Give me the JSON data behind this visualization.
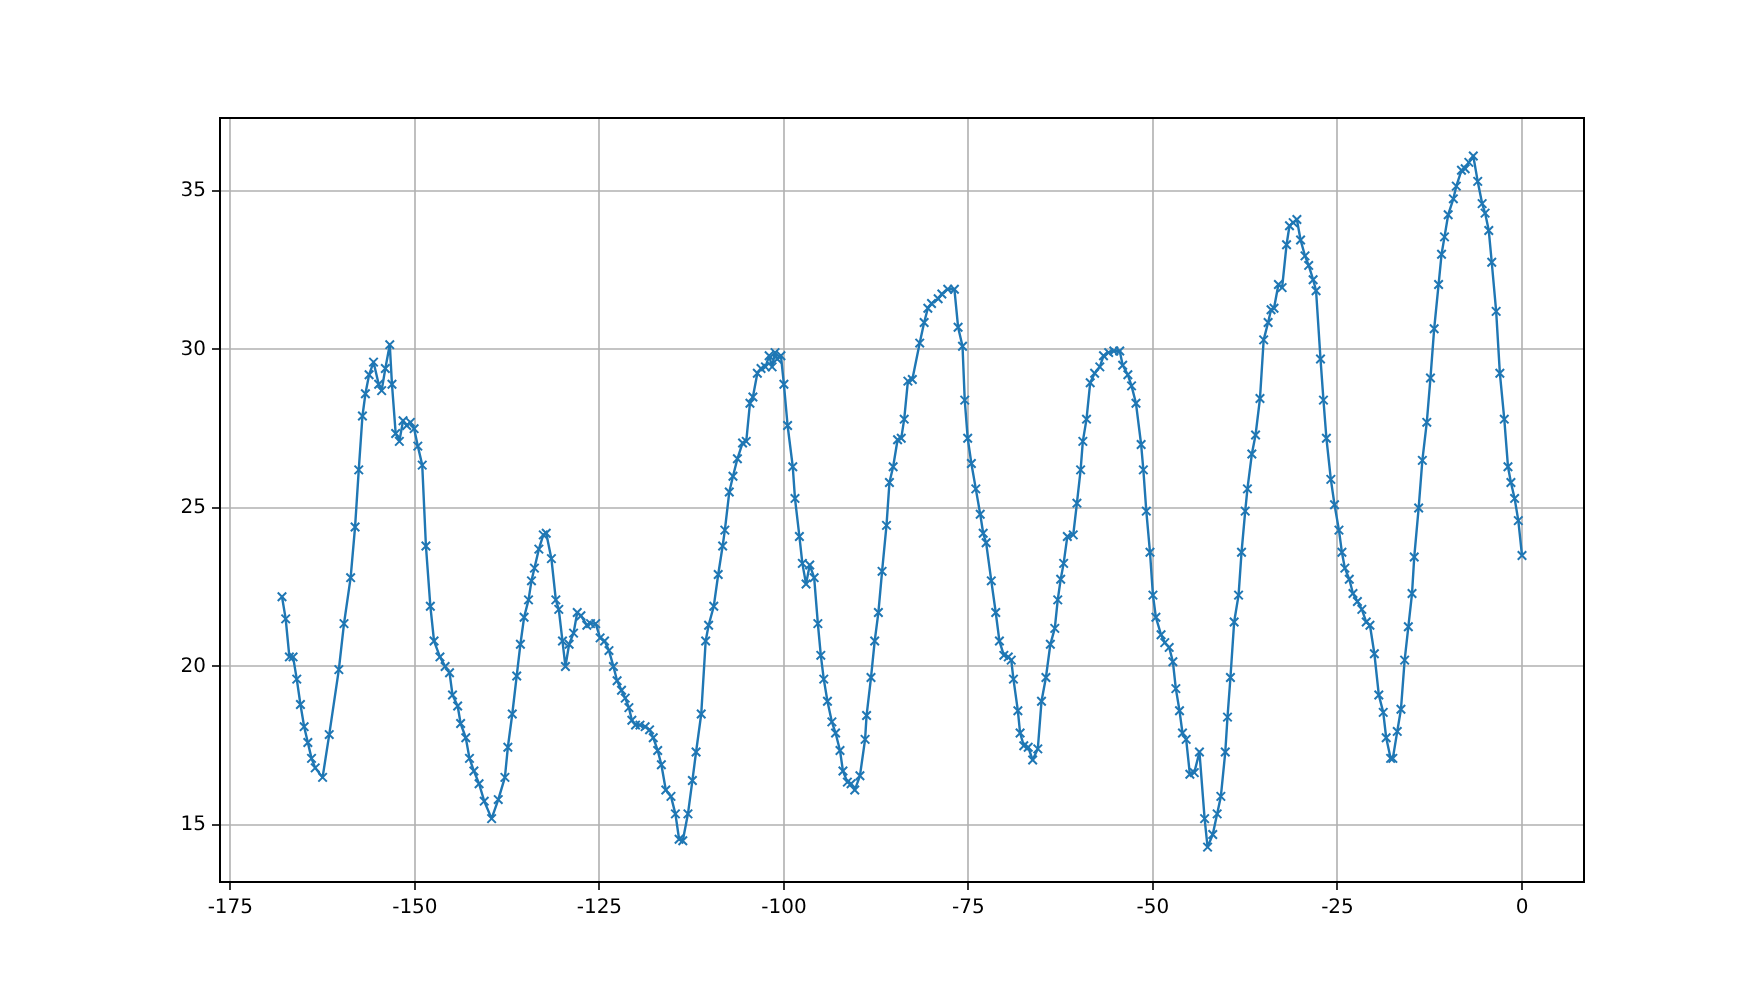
{
  "chart_data": {
    "type": "line",
    "marker": "cross",
    "line_style": "solid",
    "grid": true,
    "legend": false,
    "xlim": [
      -176.4,
      8.4
    ],
    "ylim": [
      13.2,
      37.3
    ],
    "xticks": [
      -175,
      -150,
      -125,
      -100,
      -75,
      -50,
      -25,
      0
    ],
    "yticks": [
      15,
      20,
      25,
      30,
      35
    ],
    "x": [
      -168,
      -167.5,
      -167,
      -166.5,
      -166,
      -165.5,
      -165,
      -164.5,
      -164,
      -163.5,
      -162.5,
      -161.6,
      -160.3,
      -159.6,
      -158.7,
      -158.1,
      -157.6,
      -157.1,
      -156.7,
      -156.2,
      -155.6,
      -154.9,
      -154.5,
      -154.0,
      -153.4,
      -153.1,
      -152.6,
      -152.1,
      -151.6,
      -151.1,
      -150.6,
      -150.1,
      -149.6,
      -149.0,
      -148.5,
      -147.9,
      -147.4,
      -146.6,
      -145.9,
      -145.3,
      -144.9,
      -144.2,
      -143.8,
      -143.1,
      -142.6,
      -142.0,
      -141.3,
      -140.6,
      -139.6,
      -138.7,
      -137.8,
      -137.4,
      -136.8,
      -136.2,
      -135.7,
      -135.2,
      -134.6,
      -134.2,
      -133.8,
      -133.2,
      -132.6,
      -132.2,
      -131.5,
      -130.9,
      -130.5,
      -130.0,
      -129.6,
      -129.1,
      -128.5,
      -128.0,
      -127.5,
      -126.7,
      -126.2,
      -125.5,
      -124.9,
      -124.3,
      -123.7,
      -123.1,
      -122.6,
      -122.0,
      -121.5,
      -121.0,
      -120.6,
      -120.1,
      -119.5,
      -118.8,
      -118.2,
      -117.7,
      -117.1,
      -116.6,
      -116.0,
      -115.3,
      -114.7,
      -114.2,
      -113.7,
      -113.0,
      -112.4,
      -111.9,
      -111.2,
      -110.6,
      -110.2,
      -109.5,
      -108.9,
      -108.3,
      -108.0,
      -107.4,
      -106.9,
      -106.3,
      -105.6,
      -105.1,
      -104.6,
      -104.2,
      -103.6,
      -103.1,
      -102.5,
      -102.0,
      -101.6,
      -101.2,
      -100.9,
      -100.4,
      -100.0,
      -99.5,
      -98.8,
      -98.5,
      -97.9,
      -97.5,
      -97.0,
      -96.5,
      -95.9,
      -95.4,
      -95.0,
      -94.6,
      -94.1,
      -93.5,
      -93.0,
      -92.4,
      -92.0,
      -91.4,
      -90.9,
      -90.4,
      -89.7,
      -89.0,
      -88.8,
      -88.2,
      -87.7,
      -87.2,
      -86.7,
      -86.1,
      -85.7,
      -85.2,
      -84.6,
      -84.1,
      -83.7,
      -83.2,
      -82.6,
      -81.6,
      -81.0,
      -80.5,
      -80.0,
      -79.1,
      -78.6,
      -77.8,
      -76.9,
      -76.4,
      -75.8,
      -75.5,
      -75.1,
      -74.6,
      -74.0,
      -73.4,
      -73.0,
      -72.6,
      -71.9,
      -71.3,
      -70.8,
      -70.2,
      -69.6,
      -69.2,
      -68.9,
      -68.3,
      -68.0,
      -67.5,
      -66.9,
      -66.3,
      -65.6,
      -65.1,
      -64.5,
      -63.9,
      -63.3,
      -62.9,
      -62.5,
      -62.1,
      -61.6,
      -60.8,
      -60.3,
      -59.8,
      -59.5,
      -59.0,
      -58.5,
      -57.9,
      -57.2,
      -56.7,
      -56.0,
      -55.3,
      -54.5,
      -54.1,
      -53.4,
      -52.9,
      -52.3,
      -51.6,
      -51.3,
      -50.9,
      -50.4,
      -50.0,
      -49.6,
      -48.9,
      -48.4,
      -47.8,
      -47.3,
      -46.9,
      -46.4,
      -46.0,
      -45.5,
      -45.0,
      -44.4,
      -43.7,
      -43.0,
      -42.6,
      -41.9,
      -41.3,
      -40.8,
      -40.2,
      -39.9,
      -39.5,
      -39.0,
      -38.4,
      -38.0,
      -37.5,
      -37.2,
      -36.6,
      -36.1,
      -35.5,
      -35.0,
      -34.4,
      -34.0,
      -33.6,
      -33.0,
      -32.5,
      -31.9,
      -31.5,
      -31.0,
      -30.5,
      -30.0,
      -29.4,
      -28.9,
      -28.3,
      -27.9,
      -27.3,
      -26.9,
      -26.5,
      -25.9,
      -25.4,
      -24.8,
      -24.4,
      -24.0,
      -23.4,
      -22.9,
      -22.3,
      -21.7,
      -21.1,
      -20.6,
      -20.0,
      -19.4,
      -18.8,
      -18.4,
      -17.8,
      -17.5,
      -16.9,
      -16.4,
      -15.9,
      -15.4,
      -14.9,
      -14.6,
      -14.0,
      -13.5,
      -12.9,
      -12.4,
      -11.9,
      -11.3,
      -10.9,
      -10.5,
      -10.0,
      -9.3,
      -8.9,
      -8.2,
      -7.7,
      -7.2,
      -6.6,
      -6.0,
      -5.4,
      -5.0,
      -4.5,
      -4.1,
      -3.5,
      -3.0,
      -2.4,
      -1.9,
      -1.5,
      -1.0,
      -0.5,
      0
    ],
    "series": [
      {
        "color": "#1f77b4",
        "values": [
          22.2,
          21.5,
          20.3,
          20.3,
          19.6,
          18.8,
          18.1,
          17.6,
          17.1,
          16.8,
          16.5,
          17.85,
          19.9,
          21.35,
          22.8,
          24.4,
          26.2,
          27.9,
          28.6,
          29.2,
          29.6,
          28.9,
          28.7,
          29.4,
          30.15,
          28.9,
          27.35,
          27.1,
          27.75,
          27.6,
          27.7,
          27.5,
          26.95,
          26.35,
          23.8,
          21.9,
          20.8,
          20.3,
          20.0,
          19.8,
          19.1,
          18.75,
          18.2,
          17.75,
          17.1,
          16.7,
          16.3,
          15.75,
          15.2,
          15.8,
          16.5,
          17.45,
          18.5,
          19.7,
          20.7,
          21.55,
          22.1,
          22.7,
          23.1,
          23.7,
          24.15,
          24.2,
          23.4,
          22.1,
          21.8,
          20.8,
          20.0,
          20.7,
          21.05,
          21.7,
          21.6,
          21.3,
          21.35,
          21.35,
          20.9,
          20.8,
          20.5,
          20.0,
          19.55,
          19.25,
          19.0,
          18.7,
          18.3,
          18.15,
          18.15,
          18.1,
          18.0,
          17.75,
          17.35,
          16.9,
          16.1,
          15.9,
          15.35,
          14.55,
          14.5,
          15.35,
          16.4,
          17.3,
          18.5,
          20.8,
          21.3,
          21.9,
          22.9,
          23.8,
          24.3,
          25.5,
          26.0,
          26.55,
          27.05,
          27.1,
          28.3,
          28.5,
          29.25,
          29.4,
          29.45,
          29.8,
          29.45,
          29.9,
          29.7,
          29.8,
          28.9,
          27.6,
          26.3,
          25.3,
          24.1,
          23.25,
          22.6,
          23.2,
          22.8,
          21.35,
          20.35,
          19.6,
          18.9,
          18.25,
          17.9,
          17.35,
          16.7,
          16.35,
          16.3,
          16.1,
          16.55,
          17.7,
          18.45,
          19.65,
          20.8,
          21.7,
          23.0,
          24.45,
          25.8,
          26.3,
          27.15,
          27.2,
          27.8,
          29.0,
          29.05,
          30.2,
          30.85,
          31.3,
          31.45,
          31.6,
          31.75,
          31.9,
          31.9,
          30.7,
          30.1,
          28.4,
          27.2,
          26.4,
          25.6,
          24.8,
          24.2,
          23.9,
          22.7,
          21.7,
          20.8,
          20.35,
          20.3,
          20.2,
          19.6,
          18.6,
          17.9,
          17.5,
          17.45,
          17.05,
          17.4,
          18.9,
          19.65,
          20.7,
          21.2,
          22.1,
          22.75,
          23.25,
          24.1,
          24.15,
          25.15,
          26.2,
          27.1,
          27.8,
          28.95,
          29.25,
          29.45,
          29.8,
          29.9,
          29.95,
          29.95,
          29.5,
          29.2,
          28.85,
          28.3,
          27.0,
          26.2,
          24.9,
          23.6,
          22.25,
          21.55,
          21.0,
          20.75,
          20.6,
          20.15,
          19.3,
          18.6,
          17.9,
          17.7,
          16.6,
          16.65,
          17.3,
          15.2,
          14.3,
          14.7,
          15.35,
          15.9,
          17.3,
          18.4,
          19.65,
          21.4,
          22.25,
          23.6,
          24.9,
          25.6,
          26.7,
          27.3,
          28.45,
          30.3,
          30.85,
          31.25,
          31.3,
          32.05,
          31.95,
          33.3,
          33.9,
          34.0,
          34.1,
          33.45,
          32.95,
          32.65,
          32.2,
          31.85,
          29.7,
          28.4,
          27.2,
          25.9,
          25.1,
          24.3,
          23.6,
          23.1,
          22.75,
          22.3,
          22.05,
          21.8,
          21.4,
          21.3,
          20.4,
          19.1,
          18.55,
          17.75,
          17.1,
          17.1,
          17.95,
          18.65,
          20.2,
          21.25,
          22.3,
          23.45,
          25.0,
          26.5,
          27.7,
          29.1,
          30.65,
          32.05,
          33.0,
          33.55,
          34.25,
          34.75,
          35.15,
          35.65,
          35.7,
          35.9,
          36.1,
          35.3,
          34.6,
          34.3,
          33.75,
          32.75,
          31.2,
          29.25,
          27.8,
          26.3,
          25.8,
          25.3,
          24.6,
          23.5
        ]
      }
    ]
  }
}
